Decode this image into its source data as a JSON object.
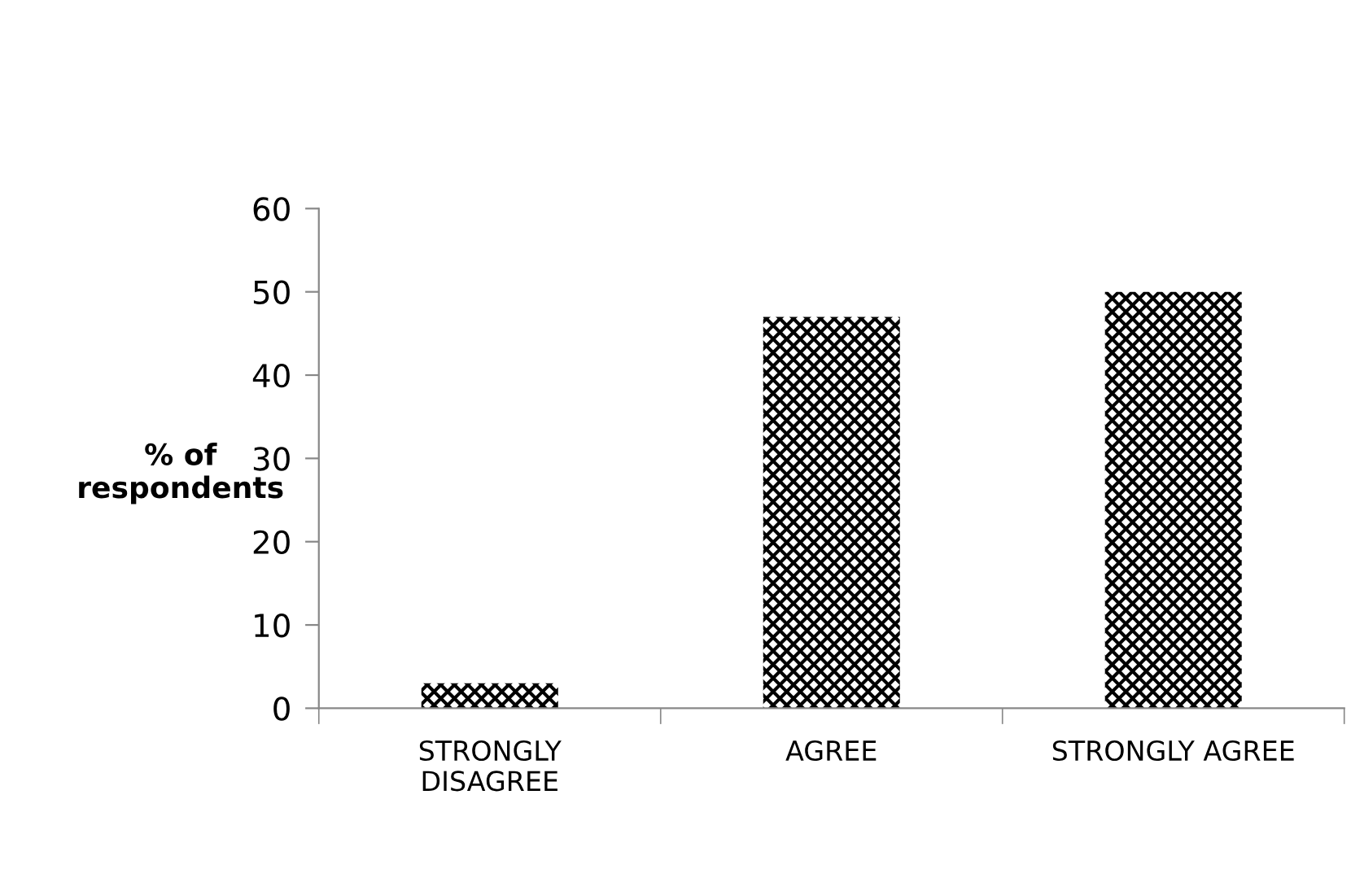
{
  "chart_data": {
    "type": "bar",
    "ylabel": "% of\nrespondents",
    "categories": [
      "STRONGLY\nDISAGREE",
      "AGREE",
      "STRONGLY AGREE"
    ],
    "values": [
      3,
      47,
      50
    ],
    "color": "#000000",
    "ylim": [
      0,
      60
    ],
    "yticks": [
      0,
      10,
      20,
      30,
      40,
      50,
      60
    ],
    "grid": false,
    "legend": false
  }
}
